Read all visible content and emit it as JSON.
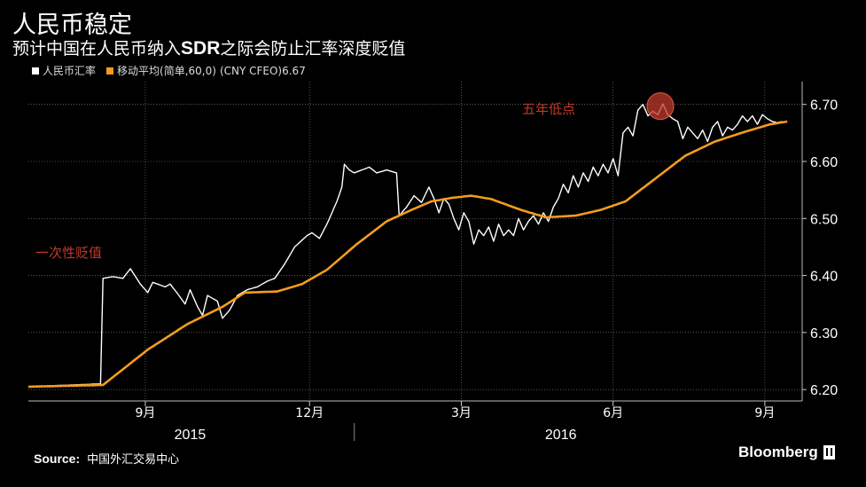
{
  "header": {
    "title": "人民币稳定",
    "subtitle_before": "预计中国在人民币纳入",
    "subtitle_bold": "SDR",
    "subtitle_after": "之际会防止汇率深度贬值"
  },
  "legend": {
    "series1_label": "人民币汇率",
    "series2_label": "移动平均",
    "series2_params": "(简单,60,0)",
    "ticker": "(CNY CFEO)",
    "last_value": "6.67"
  },
  "colors": {
    "background": "#000000",
    "fx_line": "#ffffff",
    "ma_line": "#f39c1f",
    "annotation": "#c0392b",
    "grid": "#8a8a8a"
  },
  "chart_data": {
    "type": "line",
    "title": "人民币稳定",
    "xlabel": "",
    "ylabel": "",
    "ylim": [
      6.18,
      6.74
    ],
    "yticks": [
      "6.70",
      "6.60",
      "6.50",
      "6.40",
      "6.30",
      "6.20"
    ],
    "ytick_values": [
      6.7,
      6.6,
      6.5,
      6.4,
      6.3,
      6.2
    ],
    "xtick_labels": [
      "9月",
      "12月",
      "3月",
      "6月",
      "9月"
    ],
    "xtick_index": [
      47,
      113,
      174,
      235,
      296
    ],
    "year_labels": [
      "2015",
      "2016"
    ],
    "year_label_index": [
      65,
      214
    ],
    "year_divider_index": 131,
    "n_points": 312,
    "series": [
      {
        "name": "人民币汇率",
        "anchors": [
          [
            0,
            6.205
          ],
          [
            29,
            6.21
          ],
          [
            30,
            6.395
          ],
          [
            34,
            6.398
          ],
          [
            38,
            6.395
          ],
          [
            41,
            6.412
          ],
          [
            45,
            6.385
          ],
          [
            48,
            6.37
          ],
          [
            50,
            6.388
          ],
          [
            55,
            6.38
          ],
          [
            57,
            6.385
          ],
          [
            60,
            6.368
          ],
          [
            63,
            6.35
          ],
          [
            65,
            6.375
          ],
          [
            68,
            6.345
          ],
          [
            70,
            6.33
          ],
          [
            72,
            6.365
          ],
          [
            76,
            6.355
          ],
          [
            78,
            6.325
          ],
          [
            81,
            6.34
          ],
          [
            84,
            6.365
          ],
          [
            88,
            6.375
          ],
          [
            92,
            6.38
          ],
          [
            96,
            6.39
          ],
          [
            99,
            6.395
          ],
          [
            103,
            6.42
          ],
          [
            107,
            6.45
          ],
          [
            112,
            6.47
          ],
          [
            114,
            6.475
          ],
          [
            117,
            6.465
          ],
          [
            120,
            6.49
          ],
          [
            124,
            6.53
          ],
          [
            126,
            6.555
          ],
          [
            127,
            6.595
          ],
          [
            129,
            6.585
          ],
          [
            131,
            6.58
          ],
          [
            134,
            6.585
          ],
          [
            137,
            6.59
          ],
          [
            140,
            6.58
          ],
          [
            144,
            6.585
          ],
          [
            148,
            6.58
          ],
          [
            149,
            6.505
          ],
          [
            152,
            6.52
          ],
          [
            155,
            6.54
          ],
          [
            158,
            6.528
          ],
          [
            161,
            6.555
          ],
          [
            163,
            6.535
          ],
          [
            165,
            6.51
          ],
          [
            167,
            6.535
          ],
          [
            169,
            6.525
          ],
          [
            171,
            6.5
          ],
          [
            173,
            6.48
          ],
          [
            175,
            6.51
          ],
          [
            177,
            6.495
          ],
          [
            179,
            6.455
          ],
          [
            181,
            6.48
          ],
          [
            183,
            6.47
          ],
          [
            185,
            6.485
          ],
          [
            187,
            6.46
          ],
          [
            189,
            6.49
          ],
          [
            191,
            6.47
          ],
          [
            193,
            6.48
          ],
          [
            195,
            6.47
          ],
          [
            197,
            6.5
          ],
          [
            199,
            6.48
          ],
          [
            201,
            6.495
          ],
          [
            203,
            6.505
          ],
          [
            205,
            6.49
          ],
          [
            207,
            6.51
          ],
          [
            209,
            6.495
          ],
          [
            211,
            6.52
          ],
          [
            213,
            6.535
          ],
          [
            215,
            6.56
          ],
          [
            217,
            6.545
          ],
          [
            219,
            6.575
          ],
          [
            221,
            6.555
          ],
          [
            223,
            6.58
          ],
          [
            225,
            6.565
          ],
          [
            227,
            6.59
          ],
          [
            229,
            6.575
          ],
          [
            231,
            6.595
          ],
          [
            233,
            6.58
          ],
          [
            235,
            6.605
          ],
          [
            237,
            6.575
          ],
          [
            239,
            6.65
          ],
          [
            241,
            6.66
          ],
          [
            243,
            6.645
          ],
          [
            245,
            6.69
          ],
          [
            247,
            6.7
          ],
          [
            249,
            6.68
          ],
          [
            251,
            6.688
          ],
          [
            253,
            6.682
          ],
          [
            255,
            6.701
          ],
          [
            257,
            6.682
          ],
          [
            259,
            6.675
          ],
          [
            261,
            6.67
          ],
          [
            263,
            6.64
          ],
          [
            265,
            6.66
          ],
          [
            267,
            6.65
          ],
          [
            269,
            6.64
          ],
          [
            271,
            6.655
          ],
          [
            273,
            6.635
          ],
          [
            275,
            6.66
          ],
          [
            277,
            6.67
          ],
          [
            279,
            6.645
          ],
          [
            281,
            6.66
          ],
          [
            283,
            6.655
          ],
          [
            285,
            6.665
          ],
          [
            287,
            6.68
          ],
          [
            289,
            6.67
          ],
          [
            291,
            6.68
          ],
          [
            293,
            6.665
          ],
          [
            295,
            6.682
          ],
          [
            297,
            6.675
          ],
          [
            299,
            6.67
          ],
          [
            301,
            6.668
          ],
          [
            303,
            6.67
          ]
        ]
      },
      {
        "name": "移动平均",
        "anchors": [
          [
            0,
            6.205
          ],
          [
            30,
            6.208
          ],
          [
            48,
            6.27
          ],
          [
            64,
            6.315
          ],
          [
            78,
            6.345
          ],
          [
            87,
            6.37
          ],
          [
            100,
            6.372
          ],
          [
            110,
            6.385
          ],
          [
            120,
            6.41
          ],
          [
            132,
            6.455
          ],
          [
            144,
            6.495
          ],
          [
            154,
            6.515
          ],
          [
            162,
            6.53
          ],
          [
            170,
            6.536
          ],
          [
            178,
            6.54
          ],
          [
            186,
            6.534
          ],
          [
            198,
            6.515
          ],
          [
            208,
            6.502
          ],
          [
            220,
            6.505
          ],
          [
            230,
            6.515
          ],
          [
            240,
            6.53
          ],
          [
            252,
            6.57
          ],
          [
            264,
            6.61
          ],
          [
            276,
            6.635
          ],
          [
            288,
            6.652
          ],
          [
            298,
            6.665
          ],
          [
            305,
            6.67
          ]
        ]
      }
    ]
  },
  "annotations": {
    "devaluation": "一次性贬值",
    "five_year_low": "五年低点",
    "low_marker_index": 254,
    "low_marker_value": 6.697
  },
  "footer": {
    "source_label": "Source:",
    "source_text": "中国外汇交易中心",
    "brand": "Bloomberg"
  }
}
